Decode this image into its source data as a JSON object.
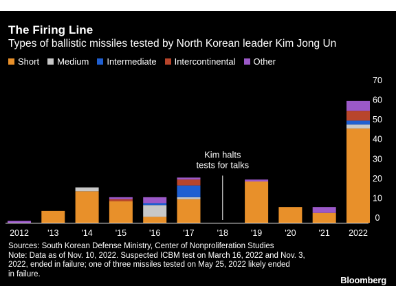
{
  "title": "The Firing Line",
  "subtitle": "Types of ballistic missiles tested by North Korean leader Kim Jong Un",
  "annotation_lines": [
    "Kim halts",
    "tests for talks"
  ],
  "notes": [
    "Sources: South Korean Defense Ministry, Center of Nonproliferation Studies",
    "Note: Data as of Nov. 10, 2022. Suspected ICBM test on March 16, 2022 and Nov. 3,",
    "2022, ended in failure; one of three missiles tested on May 25, 2022 likely ended",
    "in failure."
  ],
  "brand": "Bloomberg",
  "colors": {
    "background": "#000000",
    "Short": "#e8902a",
    "Medium": "#c8c8c8",
    "Intermediate": "#1f5fd1",
    "Intercontinental": "#b8452b",
    "Other": "#9b59c8"
  },
  "chart_data": {
    "type": "bar",
    "stacked": true,
    "title": "The Firing Line",
    "subtitle": "Types of ballistic missiles tested by North Korean leader Kim Jong Un",
    "categories": [
      "2012",
      "'13",
      "'14",
      "'15",
      "'16",
      "'17",
      "'18",
      "'19",
      "'20",
      "'21",
      "2022"
    ],
    "series": [
      {
        "name": "Short",
        "values": [
          0,
          6,
          16,
          11,
          3,
          12,
          0,
          21,
          8,
          5,
          48
        ]
      },
      {
        "name": "Medium",
        "values": [
          0,
          0,
          2,
          0,
          6,
          1,
          0,
          0,
          0,
          0,
          2
        ]
      },
      {
        "name": "Intermediate",
        "values": [
          0,
          0,
          0,
          0,
          1,
          6,
          0,
          0,
          0,
          0,
          2
        ]
      },
      {
        "name": "Intercontinental",
        "values": [
          0,
          0,
          0,
          1,
          0,
          3,
          0,
          0,
          0,
          0,
          5
        ]
      },
      {
        "name": "Other",
        "values": [
          1,
          0,
          0,
          1,
          3,
          1,
          0,
          1,
          0,
          3,
          5
        ]
      }
    ],
    "ylim": [
      0,
      70
    ],
    "yticks": [
      0,
      10,
      20,
      30,
      40,
      50,
      60,
      70
    ],
    "y_axis_side": "right",
    "legend_position": "top-left",
    "grid": false,
    "annotation": {
      "category": "'18",
      "text": "Kim halts tests for talks"
    }
  }
}
